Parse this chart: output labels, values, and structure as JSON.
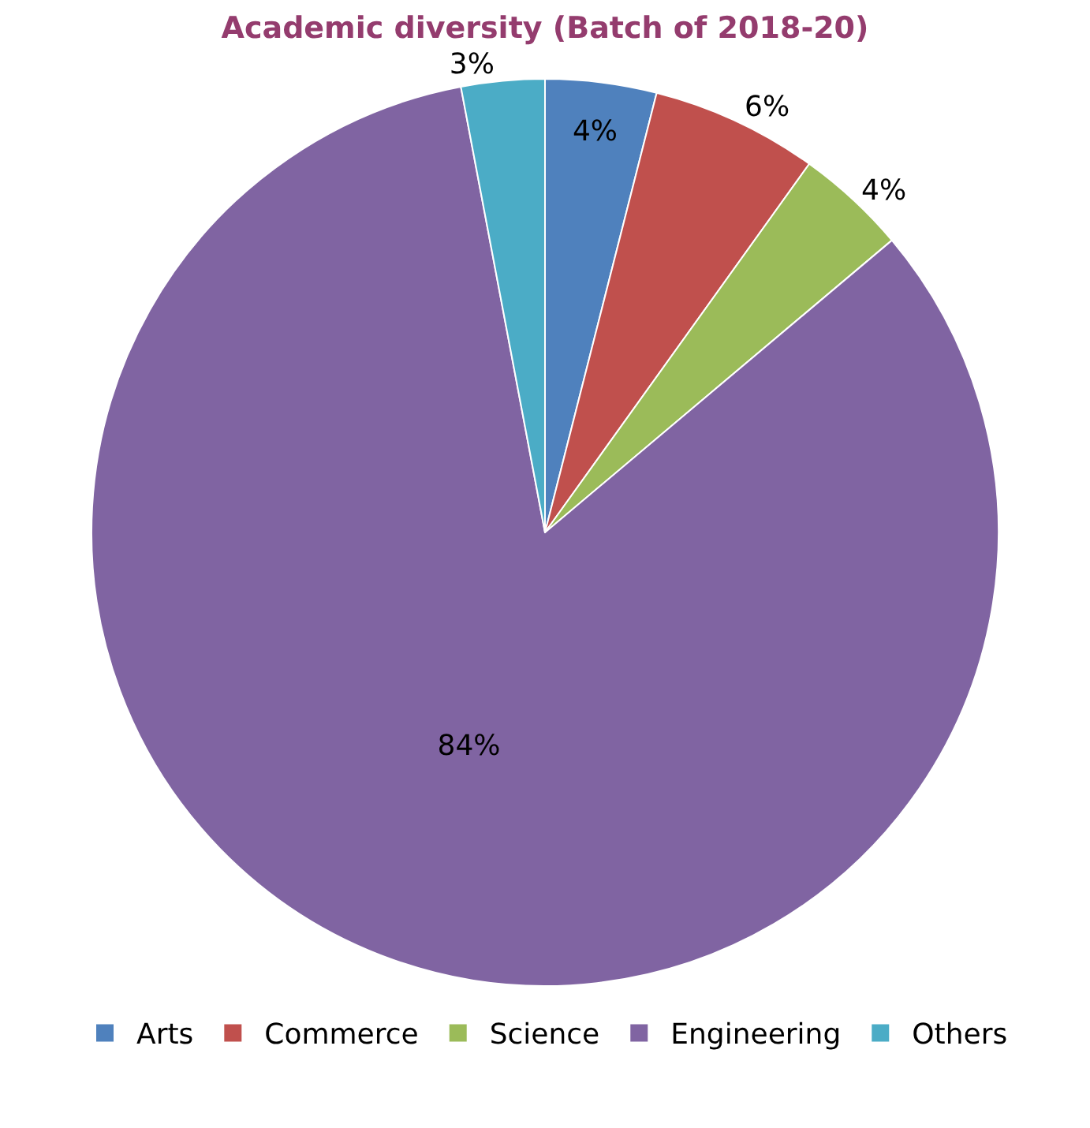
{
  "chart_data": {
    "type": "pie",
    "title": "Academic diversity (Batch of 2018-20)",
    "categories": [
      "Arts",
      "Commerce",
      "Science",
      "Engineering",
      "Others"
    ],
    "values": [
      4,
      6,
      4,
      84,
      3
    ],
    "value_labels": [
      "4%",
      "6%",
      "4%",
      "84%",
      "3%"
    ],
    "colors": [
      "#4f81bd",
      "#c0504d",
      "#9bbb59",
      "#8064a2",
      "#4bacc6"
    ],
    "legend": "bottom"
  }
}
